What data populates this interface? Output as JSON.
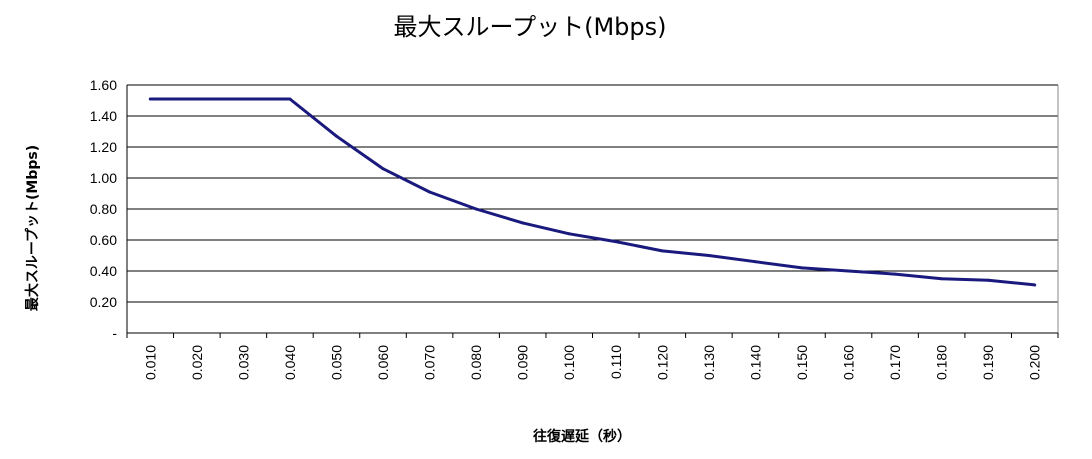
{
  "chart_data": {
    "type": "line",
    "title": "最大スループット(Mbps)",
    "xlabel": "往復遅延（秒）",
    "ylabel": "最大スループット(Mbps)",
    "ylim": [
      0,
      1.6
    ],
    "y_ticks": [
      "-",
      "0.20",
      "0.40",
      "0.60",
      "0.80",
      "1.00",
      "1.20",
      "1.40",
      "1.60"
    ],
    "x_ticks": [
      "0.010",
      "0.020",
      "0.030",
      "0.040",
      "0.050",
      "0.060",
      "0.070",
      "0.080",
      "0.090",
      "0.100",
      "0.110",
      "0.120",
      "0.130",
      "0.140",
      "0.150",
      "0.160",
      "0.170",
      "0.180",
      "0.190",
      "0.200"
    ],
    "grid": true,
    "legend": "none",
    "line_color": "#1a1a7e",
    "series": [
      {
        "x": [
          "0.010",
          "0.020",
          "0.030",
          "0.040",
          "0.050",
          "0.060",
          "0.070",
          "0.080",
          "0.090",
          "0.100",
          "0.110",
          "0.120",
          "0.130",
          "0.140",
          "0.150",
          "0.160",
          "0.170",
          "0.180",
          "0.190",
          "0.200"
        ],
        "values": [
          1.51,
          1.51,
          1.51,
          1.51,
          1.27,
          1.06,
          0.91,
          0.8,
          0.71,
          0.64,
          0.59,
          0.53,
          0.5,
          0.46,
          0.42,
          0.4,
          0.38,
          0.35,
          0.34,
          0.31
        ]
      }
    ]
  }
}
